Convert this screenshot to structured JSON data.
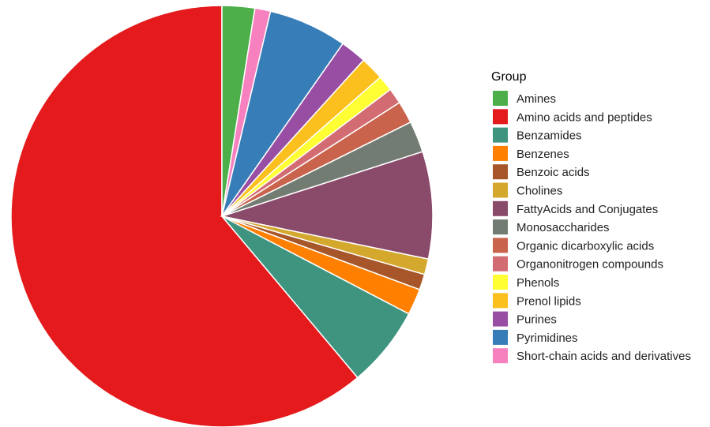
{
  "chart_data": {
    "type": "pie",
    "title": "",
    "legend_title": "Group",
    "legend_position": "right",
    "slices": [
      {
        "label": "Amines",
        "value": 2.5,
        "color": "#4DAF4A"
      },
      {
        "label": "Amino acids and peptides",
        "value": 61.0,
        "color": "#E41A1C"
      },
      {
        "label": "Benzamides",
        "value": 6.2,
        "color": "#3F9480"
      },
      {
        "label": "Benzenes",
        "value": 2.0,
        "color": "#FF7F00"
      },
      {
        "label": "Benzoic acids",
        "value": 1.2,
        "color": "#A65628"
      },
      {
        "label": "Cholines",
        "value": 1.2,
        "color": "#D4A72D"
      },
      {
        "label": "FattyAcids and Conjugates",
        "value": 8.2,
        "color": "#8A4A6A"
      },
      {
        "label": "Monosaccharides",
        "value": 2.4,
        "color": "#737C73"
      },
      {
        "label": "Organic dicarboxylic acids",
        "value": 1.7,
        "color": "#C9634C"
      },
      {
        "label": "Organonitrogen compounds",
        "value": 1.2,
        "color": "#D36B72"
      },
      {
        "label": "Phenols",
        "value": 1.2,
        "color": "#FFFF33"
      },
      {
        "label": "Prenol lipids",
        "value": 1.8,
        "color": "#FBBF1E"
      },
      {
        "label": "Purines",
        "value": 2.0,
        "color": "#984EA3"
      },
      {
        "label": "Pyrimidines",
        "value": 6.0,
        "color": "#377EB8"
      },
      {
        "label": "Short-chain acids and derivatives",
        "value": 1.2,
        "color": "#F781BF"
      }
    ],
    "pie_order": [
      "Amino acids and peptides",
      "Amines",
      "Short-chain acids and derivatives",
      "Pyrimidines",
      "Purines",
      "Prenol lipids",
      "Phenols",
      "Organonitrogen compounds",
      "Organic dicarboxylic acids",
      "Monosaccharides",
      "FattyAcids and Conjugates",
      "Cholines",
      "Benzoic acids",
      "Benzenes",
      "Benzamides"
    ]
  }
}
